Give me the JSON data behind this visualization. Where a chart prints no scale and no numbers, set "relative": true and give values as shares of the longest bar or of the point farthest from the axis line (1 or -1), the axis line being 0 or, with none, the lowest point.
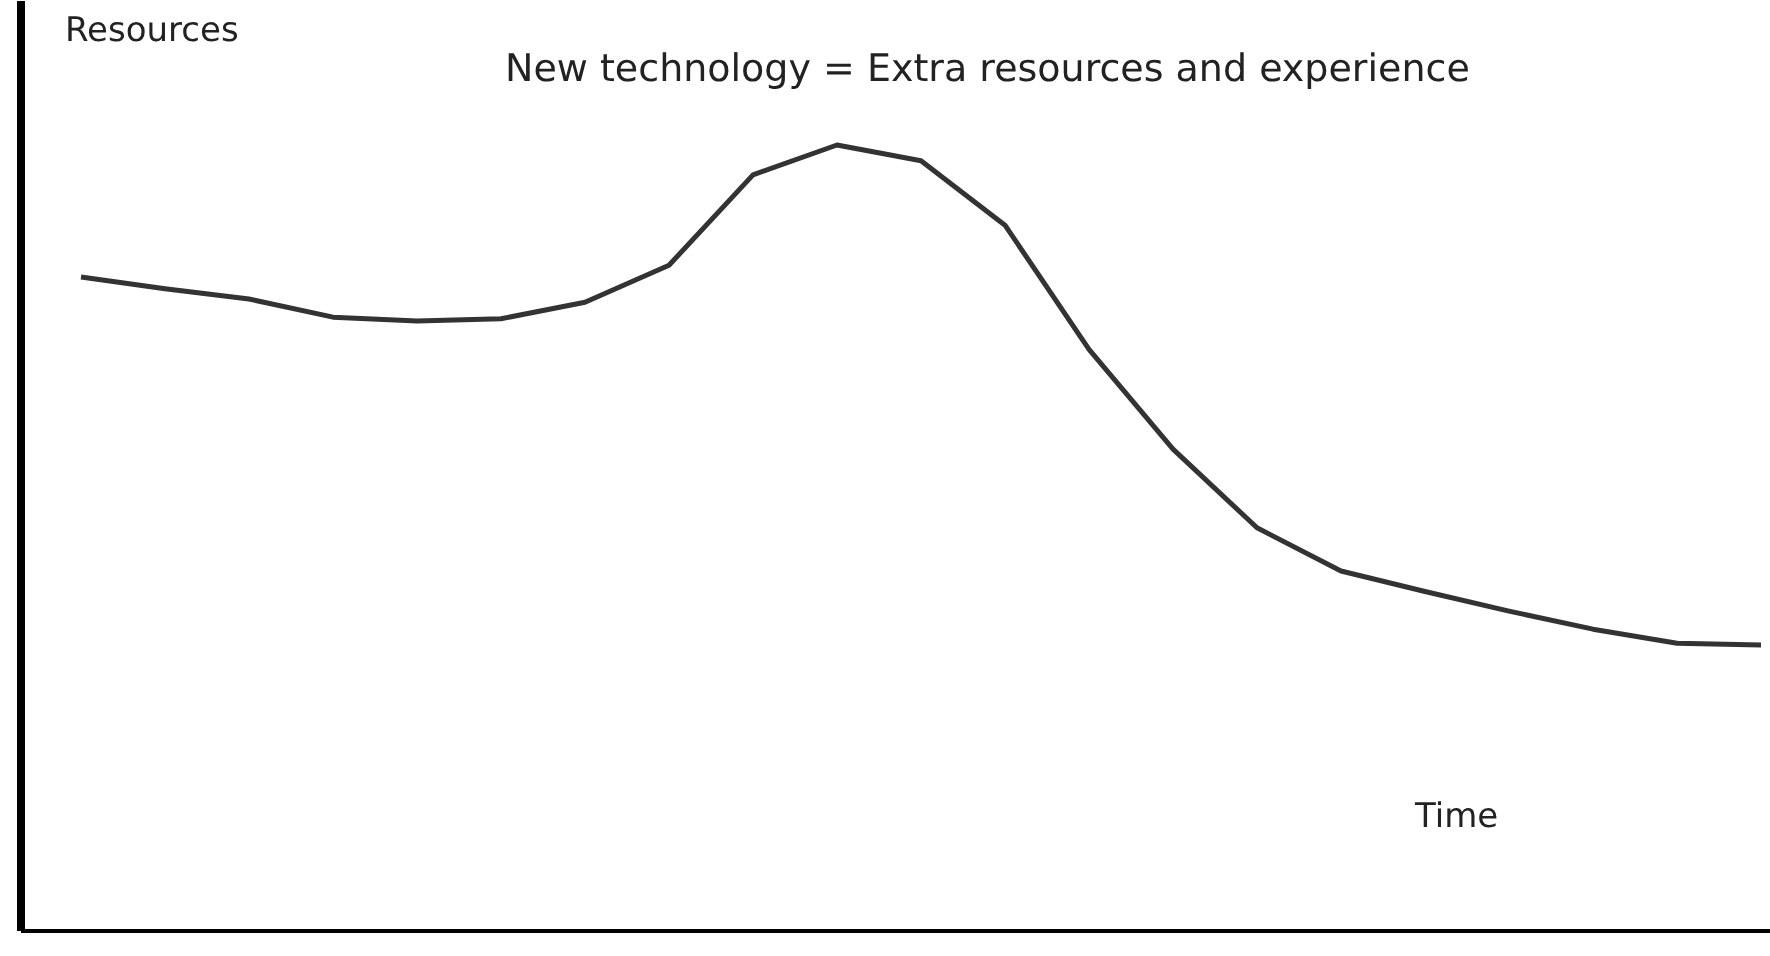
{
  "chart_data": {
    "type": "line",
    "relative": true,
    "title": "New  technology = Extra resources and experience",
    "xlabel": "Time",
    "ylabel": "Resources",
    "marker": "none",
    "line_style": "solid",
    "categories": [
      null,
      null,
      null,
      null,
      null,
      null,
      null,
      null,
      null,
      null,
      null,
      null,
      null,
      null,
      null,
      null,
      null,
      null,
      null,
      null,
      null
    ],
    "series": [
      {
        "color": "#333333",
        "values": [
          0.832,
          0.817,
          0.804,
          0.781,
          0.776,
          0.779,
          0.8,
          0.847,
          0.962,
          1,
          0.98,
          0.898,
          0.74,
          0.613,
          0.513,
          0.458,
          0.432,
          0.407,
          0.384,
          0.366,
          0.364
        ]
      }
    ]
  }
}
